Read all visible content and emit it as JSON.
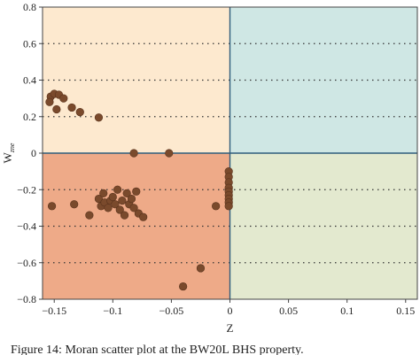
{
  "chart_data": {
    "type": "scatter",
    "xlabel": "Z",
    "ylabel": "W",
    "ylabel_sub": "zne",
    "xlim": [
      -0.16,
      0.16
    ],
    "ylim": [
      -0.8,
      0.8
    ],
    "x_ticks": [
      -0.15,
      -0.1,
      -0.05,
      0,
      0.05,
      0.1,
      0.15
    ],
    "x_tick_labels": [
      "−0.15",
      "−0.1",
      "−0.05",
      "0",
      "0.05",
      "0.1",
      "0.15"
    ],
    "y_ticks": [
      0.8,
      0.6,
      0.4,
      0.2,
      0,
      -0.2,
      -0.4,
      -0.6,
      -0.8
    ],
    "y_tick_labels": [
      "0.8",
      "0.6",
      "0.4",
      "0.2",
      "0",
      "−0.2",
      "−0.4",
      "−0.6",
      "−0.8"
    ],
    "grid": "horizontal dotted",
    "quadrant_colors": {
      "top_left": "#fde9cf",
      "top_right": "#cfe7e4",
      "bottom_left": "#eeaa88",
      "bottom_right": "#e3e9cf"
    },
    "marker_color": "#7a4a2c",
    "divider_color": "#2f5d7c",
    "points": [
      [
        -0.153,
        0.31
      ],
      [
        -0.15,
        0.325
      ],
      [
        -0.146,
        0.32
      ],
      [
        -0.154,
        0.28
      ],
      [
        -0.142,
        0.3
      ],
      [
        -0.148,
        0.24
      ],
      [
        -0.135,
        0.25
      ],
      [
        -0.128,
        0.225
      ],
      [
        -0.112,
        0.195
      ],
      [
        -0.082,
        0.0
      ],
      [
        -0.052,
        0.0
      ],
      [
        -0.152,
        -0.29
      ],
      [
        -0.133,
        -0.28
      ],
      [
        -0.12,
        -0.34
      ],
      [
        -0.112,
        -0.25
      ],
      [
        -0.11,
        -0.29
      ],
      [
        -0.108,
        -0.22
      ],
      [
        -0.107,
        -0.27
      ],
      [
        -0.104,
        -0.3
      ],
      [
        -0.102,
        -0.26
      ],
      [
        -0.1,
        -0.24
      ],
      [
        -0.098,
        -0.28
      ],
      [
        -0.096,
        -0.2
      ],
      [
        -0.094,
        -0.31
      ],
      [
        -0.092,
        -0.26
      ],
      [
        -0.09,
        -0.34
      ],
      [
        -0.088,
        -0.22
      ],
      [
        -0.086,
        -0.28
      ],
      [
        -0.084,
        -0.25
      ],
      [
        -0.082,
        -0.3
      ],
      [
        -0.08,
        -0.21
      ],
      [
        -0.078,
        -0.33
      ],
      [
        -0.074,
        -0.35
      ],
      [
        -0.012,
        -0.29
      ],
      [
        -0.025,
        -0.63
      ],
      [
        -0.04,
        -0.73
      ],
      [
        -0.001,
        -0.1
      ],
      [
        -0.001,
        -0.13
      ],
      [
        -0.001,
        -0.16
      ],
      [
        -0.001,
        -0.19
      ],
      [
        -0.001,
        -0.21
      ],
      [
        -0.001,
        -0.23
      ],
      [
        -0.001,
        -0.25
      ],
      [
        -0.001,
        -0.27
      ],
      [
        -0.001,
        -0.29
      ]
    ]
  },
  "caption": "Figure 14: Moran scatter plot at the BW20L BHS property."
}
